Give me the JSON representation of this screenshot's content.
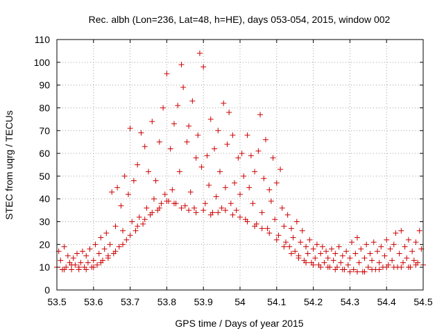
{
  "chart_data": {
    "type": "scatter",
    "title": "Rec. albh (Lon=236, Lat=48, h=HE), days 053-054, 2015, window 002",
    "xlabel": "GPS time / Days of year 2015",
    "ylabel": "STEC from uqrg / TECUs",
    "xlim": [
      53.5,
      54.5
    ],
    "ylim": [
      0,
      110
    ],
    "x_ticks": [
      "53.5",
      "53.6",
      "53.7",
      "53.8",
      "53.9",
      "54",
      "54.1",
      "54.2",
      "54.3",
      "54.4",
      "54.5"
    ],
    "y_ticks": [
      "0",
      "10",
      "20",
      "30",
      "40",
      "50",
      "60",
      "70",
      "80",
      "90",
      "100",
      "110"
    ],
    "marker": "+",
    "marker_color": "#cc0000",
    "series": [
      {
        "name": "STEC",
        "points": [
          [
            53.5,
            10
          ],
          [
            53.505,
            17
          ],
          [
            53.51,
            13
          ],
          [
            53.515,
            9
          ],
          [
            53.52,
            19
          ],
          [
            53.525,
            10
          ],
          [
            53.53,
            15
          ],
          [
            53.535,
            12
          ],
          [
            53.54,
            9
          ],
          [
            53.545,
            14
          ],
          [
            53.55,
            11
          ],
          [
            53.555,
            16
          ],
          [
            53.56,
            9
          ],
          [
            53.565,
            12
          ],
          [
            53.57,
            17
          ],
          [
            53.575,
            10
          ],
          [
            53.58,
            15
          ],
          [
            53.585,
            12
          ],
          [
            53.59,
            18
          ],
          [
            53.595,
            10
          ],
          [
            53.6,
            13
          ],
          [
            53.605,
            20
          ],
          [
            53.61,
            11
          ],
          [
            53.615,
            16
          ],
          [
            53.62,
            23
          ],
          [
            53.625,
            13
          ],
          [
            53.63,
            18
          ],
          [
            53.635,
            25
          ],
          [
            53.64,
            15
          ],
          [
            53.645,
            20
          ],
          [
            53.65,
            43
          ],
          [
            53.655,
            16
          ],
          [
            53.66,
            28
          ],
          [
            53.665,
            45
          ],
          [
            53.67,
            19
          ],
          [
            53.675,
            37
          ],
          [
            53.68,
            26
          ],
          [
            53.685,
            50
          ],
          [
            53.69,
            22
          ],
          [
            53.695,
            42
          ],
          [
            53.7,
            71
          ],
          [
            53.705,
            30
          ],
          [
            53.71,
            48
          ],
          [
            53.715,
            26
          ],
          [
            53.72,
            55
          ],
          [
            53.725,
            32
          ],
          [
            53.73,
            69
          ],
          [
            53.735,
            29
          ],
          [
            53.74,
            63
          ],
          [
            53.745,
            36
          ],
          [
            53.75,
            52
          ],
          [
            53.755,
            33
          ],
          [
            53.76,
            74
          ],
          [
            53.765,
            40
          ],
          [
            53.77,
            48
          ],
          [
            53.775,
            35
          ],
          [
            53.78,
            65
          ],
          [
            53.785,
            38
          ],
          [
            53.79,
            80
          ],
          [
            53.795,
            42
          ],
          [
            53.8,
            95
          ],
          [
            53.805,
            39
          ],
          [
            53.81,
            62
          ],
          [
            53.815,
            44
          ],
          [
            53.82,
            73
          ],
          [
            53.825,
            38
          ],
          [
            53.83,
            81
          ],
          [
            53.835,
            52
          ],
          [
            53.84,
            99
          ],
          [
            53.845,
            89
          ],
          [
            53.85,
            37
          ],
          [
            53.855,
            65
          ],
          [
            53.86,
            72
          ],
          [
            53.865,
            43
          ],
          [
            53.87,
            83
          ],
          [
            53.875,
            36
          ],
          [
            53.88,
            58
          ],
          [
            53.885,
            68
          ],
          [
            53.89,
            104
          ],
          [
            53.895,
            54
          ],
          [
            53.9,
            98
          ],
          [
            53.905,
            38
          ],
          [
            53.91,
            59
          ],
          [
            53.915,
            46
          ],
          [
            53.92,
            75
          ],
          [
            53.925,
            34
          ],
          [
            53.93,
            62
          ],
          [
            53.935,
            41
          ],
          [
            53.94,
            70
          ],
          [
            53.945,
            52
          ],
          [
            53.95,
            36
          ],
          [
            53.955,
            82
          ],
          [
            53.96,
            45
          ],
          [
            53.965,
            64
          ],
          [
            53.97,
            78
          ],
          [
            53.975,
            38
          ],
          [
            53.98,
            68
          ],
          [
            53.985,
            47
          ],
          [
            53.99,
            35
          ],
          [
            53.995,
            58
          ],
          [
            54.0,
            42
          ],
          [
            54.005,
            60
          ],
          [
            54.01,
            50
          ],
          [
            54.015,
            31
          ],
          [
            54.02,
            68
          ],
          [
            54.025,
            45
          ],
          [
            54.03,
            59
          ],
          [
            54.035,
            38
          ],
          [
            54.04,
            52
          ],
          [
            54.045,
            29
          ],
          [
            54.05,
            61
          ],
          [
            54.055,
            77
          ],
          [
            54.06,
            34
          ],
          [
            54.065,
            49
          ],
          [
            54.07,
            66
          ],
          [
            54.075,
            27
          ],
          [
            54.08,
            44
          ],
          [
            54.085,
            39
          ],
          [
            54.09,
            58
          ],
          [
            54.095,
            31
          ],
          [
            54.1,
            47
          ],
          [
            54.105,
            24
          ],
          [
            54.11,
            53
          ],
          [
            54.115,
            36
          ],
          [
            54.12,
            28
          ],
          [
            54.125,
            21
          ],
          [
            54.13,
            33
          ],
          [
            54.135,
            19
          ],
          [
            54.14,
            27
          ],
          [
            54.145,
            23
          ],
          [
            54.15,
            17
          ],
          [
            54.155,
            30
          ],
          [
            54.16,
            15
          ],
          [
            54.165,
            21
          ],
          [
            54.17,
            26
          ],
          [
            54.175,
            13
          ],
          [
            54.18,
            19
          ],
          [
            54.185,
            16
          ],
          [
            54.19,
            22
          ],
          [
            54.195,
            12
          ],
          [
            54.2,
            18
          ],
          [
            54.205,
            14
          ],
          [
            54.21,
            20
          ],
          [
            54.215,
            11
          ],
          [
            54.22,
            16
          ],
          [
            54.225,
            19
          ],
          [
            54.23,
            12
          ],
          [
            54.235,
            17
          ],
          [
            54.24,
            14
          ],
          [
            54.245,
            10
          ],
          [
            54.25,
            18
          ],
          [
            54.255,
            13
          ],
          [
            54.26,
            16
          ],
          [
            54.265,
            10
          ],
          [
            54.27,
            19
          ],
          [
            54.275,
            12
          ],
          [
            54.28,
            15
          ],
          [
            54.285,
            9
          ],
          [
            54.29,
            17
          ],
          [
            54.295,
            11
          ],
          [
            54.3,
            14
          ],
          [
            54.305,
            21
          ],
          [
            54.31,
            9
          ],
          [
            54.315,
            16
          ],
          [
            54.32,
            23
          ],
          [
            54.325,
            12
          ],
          [
            54.33,
            18
          ],
          [
            54.335,
            8
          ],
          [
            54.34,
            14
          ],
          [
            54.345,
            20
          ],
          [
            54.35,
            10
          ],
          [
            54.355,
            16
          ],
          [
            54.36,
            13
          ],
          [
            54.365,
            21
          ],
          [
            54.37,
            9
          ],
          [
            54.375,
            17
          ],
          [
            54.38,
            12
          ],
          [
            54.385,
            19
          ],
          [
            54.39,
            10
          ],
          [
            54.395,
            15
          ],
          [
            54.4,
            22
          ],
          [
            54.405,
            11
          ],
          [
            54.41,
            18
          ],
          [
            54.415,
            13
          ],
          [
            54.42,
            20
          ],
          [
            54.425,
            25
          ],
          [
            54.43,
            10
          ],
          [
            54.435,
            16
          ],
          [
            54.44,
            26
          ],
          [
            54.445,
            12
          ],
          [
            54.45,
            19
          ],
          [
            54.455,
            14
          ],
          [
            54.46,
            22
          ],
          [
            54.465,
            10
          ],
          [
            54.47,
            17
          ],
          [
            54.475,
            13
          ],
          [
            54.48,
            21
          ],
          [
            54.485,
            12
          ],
          [
            54.49,
            26
          ],
          [
            54.495,
            18
          ],
          [
            53.52,
            9
          ],
          [
            53.54,
            11
          ],
          [
            53.56,
            10
          ],
          [
            53.58,
            9
          ],
          [
            53.6,
            10
          ],
          [
            53.62,
            12
          ],
          [
            53.64,
            14
          ],
          [
            53.66,
            17
          ],
          [
            53.68,
            20
          ],
          [
            53.7,
            24
          ],
          [
            53.72,
            28
          ],
          [
            53.74,
            31
          ],
          [
            53.76,
            34
          ],
          [
            53.78,
            36
          ],
          [
            53.8,
            39
          ],
          [
            53.82,
            38
          ],
          [
            53.84,
            36
          ],
          [
            53.86,
            35
          ],
          [
            53.88,
            34
          ],
          [
            53.9,
            35
          ],
          [
            53.92,
            33
          ],
          [
            53.94,
            34
          ],
          [
            53.96,
            35
          ],
          [
            53.98,
            33
          ],
          [
            54.0,
            32
          ],
          [
            54.02,
            30
          ],
          [
            54.04,
            28
          ],
          [
            54.06,
            27
          ],
          [
            54.08,
            25
          ],
          [
            54.1,
            22
          ],
          [
            54.12,
            19
          ],
          [
            54.14,
            16
          ],
          [
            54.16,
            14
          ],
          [
            54.18,
            12
          ],
          [
            54.2,
            11
          ],
          [
            54.22,
            10
          ],
          [
            54.24,
            10
          ],
          [
            54.26,
            9
          ],
          [
            54.28,
            9
          ],
          [
            54.3,
            8
          ],
          [
            54.32,
            8
          ],
          [
            54.34,
            8
          ],
          [
            54.36,
            9
          ],
          [
            54.38,
            9
          ],
          [
            54.4,
            10
          ],
          [
            54.42,
            10
          ],
          [
            54.44,
            10
          ],
          [
            54.46,
            10
          ],
          [
            54.48,
            11
          ],
          [
            54.5,
            11
          ]
        ]
      }
    ]
  }
}
